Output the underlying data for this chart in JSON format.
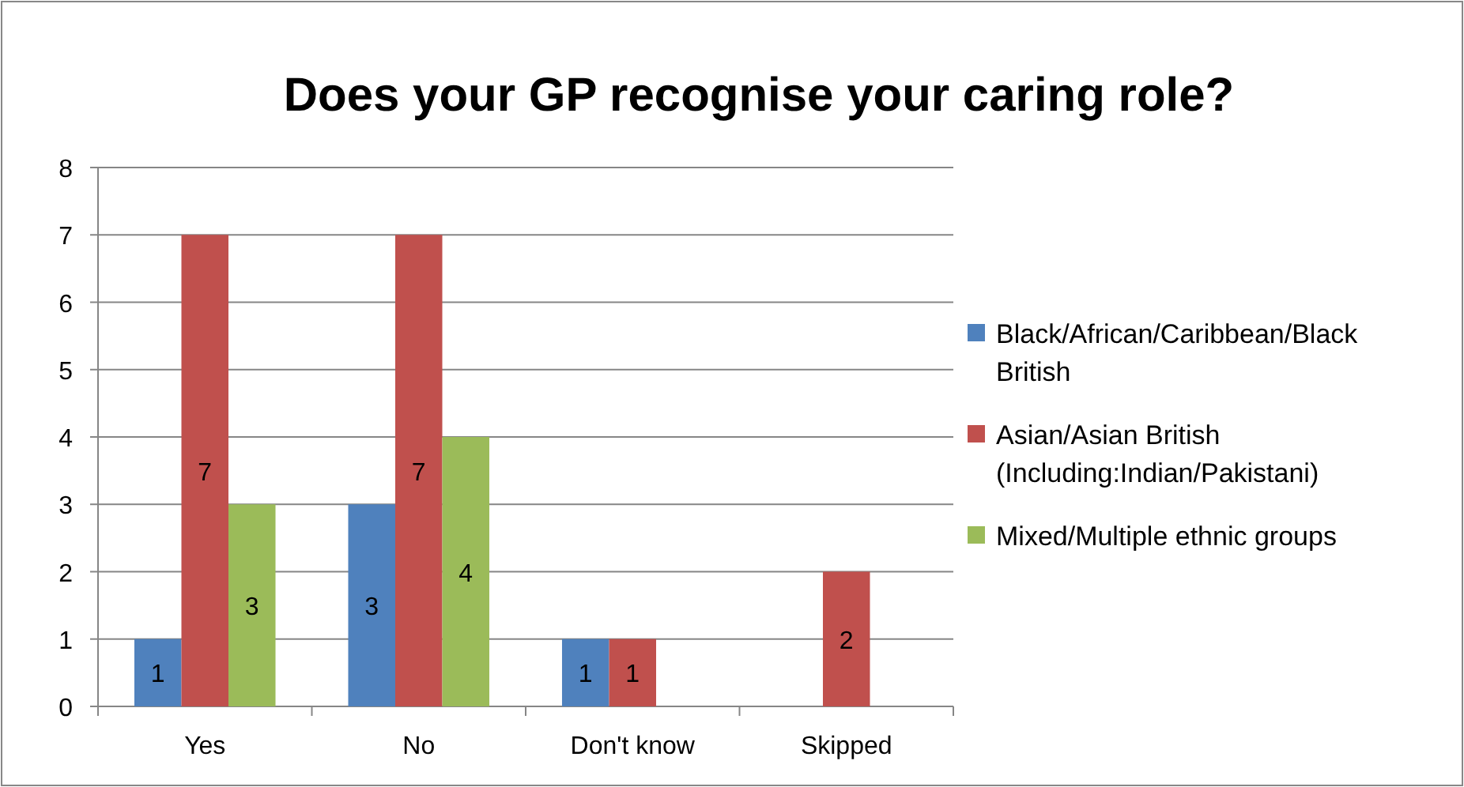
{
  "chart_data": {
    "type": "bar",
    "title": "Does your GP recognise your caring role?",
    "categories": [
      "Yes",
      "No",
      "Don't know",
      "Skipped"
    ],
    "series": [
      {
        "name": "Black/African/Caribbean/Black British",
        "color": "#4f81bd",
        "values": [
          1,
          3,
          1,
          null
        ]
      },
      {
        "name": "Asian/Asian British (Including:Indian/Pakistani)",
        "color": "#c0504d",
        "values": [
          7,
          7,
          1,
          2
        ]
      },
      {
        "name": "Mixed/Multiple ethnic groups",
        "color": "#9bbb59",
        "values": [
          3,
          4,
          null,
          null
        ]
      }
    ],
    "ylim": [
      0,
      8
    ],
    "yticks": [
      0,
      1,
      2,
      3,
      4,
      5,
      6,
      7,
      8
    ],
    "grid": "y",
    "legend": "right",
    "data_labels": true
  }
}
